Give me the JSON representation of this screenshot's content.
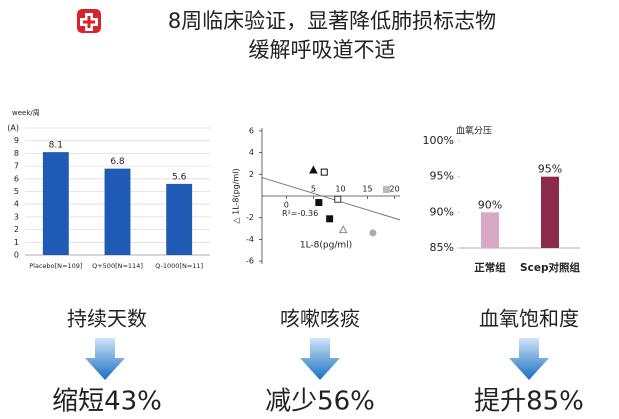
{
  "header": {
    "title_lines": [
      "8周临床验证，显著降低肺损标志物",
      "缓解呼吸道不适"
    ]
  },
  "chart_data": [
    {
      "type": "bar",
      "ylabel": "week/周",
      "categories": [
        "Placebo[N=109]",
        "Q+500[N=114]",
        "Q-1000[N=11]"
      ],
      "values": [
        8.1,
        6.8,
        5.6
      ],
      "color": "#1f5bb5",
      "ylim": [
        0,
        10
      ],
      "yticks": [
        0,
        1,
        2,
        3,
        4,
        5,
        6,
        7,
        8,
        9,
        {
          "value": 10,
          "label": "(A)"
        }
      ],
      "grid": true
    },
    {
      "type": "scatter",
      "xlabel": "1L-8(pg/ml)",
      "ylabel": "△ 1L-8(pg/ml)",
      "annotation": "R²=-0.36",
      "x": [
        5,
        7,
        6,
        8,
        9.5,
        10.5,
        16,
        18.5
      ],
      "y": [
        2.4,
        2.2,
        -0.6,
        -2.1,
        -0.3,
        -3.1,
        -3.4,
        0.6
      ],
      "markers": [
        "triangle-filled",
        "square-open",
        "square-filled",
        "square-filled",
        "square-open",
        "triangle-open",
        "circle-filled",
        "square-filled"
      ],
      "colors": [
        "#111111",
        "#111111",
        "#111111",
        "#111111",
        "#333333",
        "#888888",
        "#aaaaaa",
        "#bbbbbb"
      ],
      "trendline": {
        "x": [
          -4.5,
          21
        ],
        "y": [
          1.7,
          -2.2
        ],
        "color": "#777777"
      },
      "xlim": [
        -4.5,
        21
      ],
      "xticks": [
        0,
        5,
        10,
        15,
        20
      ],
      "ylim": [
        -7,
        7
      ],
      "yticks": [
        6,
        4,
        2,
        -2,
        -4,
        -6
      ]
    },
    {
      "type": "bar",
      "ylabel": "血氧分压",
      "categories": [
        "正常组",
        "Scep对照组"
      ],
      "category_colors": [
        "#666666",
        "#c0292b"
      ],
      "values": [
        90,
        95
      ],
      "value_labels": [
        "90%",
        "95%"
      ],
      "colors": [
        "#d9a8c4",
        "#8b2a4a"
      ],
      "ylim": [
        85,
        100
      ],
      "yticks": [
        {
          "value": 85,
          "label": "85%"
        },
        {
          "value": 90,
          "label": "90%"
        },
        {
          "value": 95,
          "label": "95%"
        },
        {
          "value": 100,
          "label": "100%"
        }
      ],
      "grid": false
    }
  ],
  "panels": [
    {
      "label": "持续天数",
      "result": "缩短43%"
    },
    {
      "label": "咳嗽咳痰",
      "result": "减少56%"
    },
    {
      "label": "血氧饱和度",
      "result": "提升85%"
    }
  ]
}
